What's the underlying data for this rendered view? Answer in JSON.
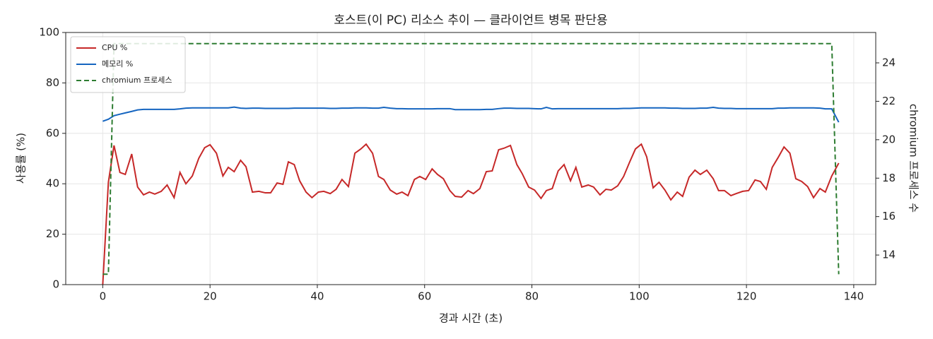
{
  "chart_data": {
    "type": "line",
    "title": "호스트(이 PC) 리소스 추이 — 클라이언트 병목 판단용",
    "xlabel": "경과 시간 (초)",
    "ylabel": "사용률 (%)",
    "y2label": "chromium 프로세스 수",
    "x": [
      0,
      1.05,
      2.1,
      3.2,
      4.2,
      5.4,
      6.5,
      7.6,
      8.7,
      9.7,
      10.9,
      12.0,
      13.3,
      14.4,
      15.5,
      16.7,
      17.9,
      19.0,
      20.0,
      21.2,
      22.4,
      23.4,
      24.5,
      25.7,
      26.7,
      27.9,
      29.1,
      30.3,
      31.3,
      32.5,
      33.6,
      34.6,
      35.7,
      36.7,
      37.9,
      39.0,
      40.2,
      41.2,
      42.4,
      43.5,
      44.6,
      45.8,
      47.0,
      48.1,
      49.1,
      50.3,
      51.4,
      52.4,
      53.6,
      54.8,
      55.8,
      56.9,
      58.1,
      59.1,
      60.2,
      61.4,
      62.4,
      63.5,
      64.7,
      65.7,
      66.9,
      68.1,
      69.1,
      70.3,
      71.5,
      72.6,
      73.8,
      74.8,
      76.0,
      77.2,
      78.2,
      79.4,
      80.5,
      81.7,
      82.7,
      83.8,
      84.9,
      86.0,
      87.2,
      88.2,
      89.3,
      90.5,
      91.5,
      92.7,
      93.8,
      94.8,
      96.0,
      97.1,
      98.2,
      99.3,
      100.4,
      101.4,
      102.6,
      103.7,
      104.8,
      105.9,
      107.1,
      108.1,
      109.3,
      110.4,
      111.4,
      112.6,
      113.8,
      114.8,
      115.9,
      117.1,
      118.1,
      119.3,
      120.4,
      121.6,
      122.6,
      123.7,
      124.8,
      125.9,
      127.0,
      128.1,
      129.2,
      130.3,
      131.4,
      132.5,
      133.7,
      134.7,
      135.9,
      137.2
    ],
    "series": [
      {
        "name": "CPU %",
        "color": "#c62828",
        "style": "solid",
        "values": [
          0,
          40.6,
          55.2,
          44.5,
          43.7,
          51.8,
          38.7,
          35.6,
          36.7,
          35.9,
          37.0,
          39.5,
          34.5,
          44.5,
          40.0,
          43.1,
          50.1,
          54.3,
          55.5,
          52.1,
          43.1,
          46.5,
          44.8,
          49.3,
          46.8,
          36.7,
          37.0,
          36.4,
          36.4,
          40.3,
          39.8,
          48.7,
          47.6,
          41.2,
          36.7,
          34.5,
          36.7,
          37.0,
          36.1,
          37.8,
          41.7,
          38.9,
          52.1,
          53.8,
          55.7,
          52.1,
          42.9,
          41.7,
          37.5,
          35.9,
          36.7,
          35.3,
          41.7,
          42.9,
          41.7,
          45.9,
          43.7,
          42.0,
          37.3,
          35.0,
          34.7,
          37.3,
          36.1,
          38.1,
          44.8,
          45.1,
          53.5,
          54.1,
          55.2,
          47.6,
          44.0,
          38.7,
          37.5,
          34.2,
          37.3,
          38.1,
          45.1,
          47.6,
          41.2,
          46.5,
          38.7,
          39.5,
          38.7,
          35.6,
          37.8,
          37.5,
          39.2,
          42.9,
          48.5,
          53.8,
          55.7,
          50.7,
          38.4,
          40.6,
          37.5,
          33.6,
          36.7,
          35.0,
          42.6,
          45.4,
          43.7,
          45.4,
          42.0,
          37.3,
          37.3,
          35.3,
          36.1,
          37.0,
          37.3,
          41.5,
          40.9,
          37.8,
          46.5,
          50.4,
          54.6,
          52.1,
          42.0,
          40.9,
          38.9,
          34.5,
          38.1,
          36.7,
          43.1,
          48.2
        ]
      },
      {
        "name": "메모리 %",
        "color": "#1565c0",
        "style": "solid",
        "values": [
          64.8,
          65.6,
          67.0,
          67.6,
          68.1,
          68.7,
          69.3,
          69.5,
          69.5,
          69.5,
          69.5,
          69.5,
          69.5,
          69.7,
          70.0,
          70.1,
          70.1,
          70.1,
          70.1,
          70.1,
          70.1,
          70.1,
          70.4,
          70.0,
          69.9,
          70.0,
          70.0,
          69.9,
          69.9,
          69.9,
          69.9,
          69.9,
          70.0,
          70.0,
          70.0,
          70.0,
          70.0,
          70.0,
          69.9,
          69.9,
          70.0,
          70.0,
          70.1,
          70.1,
          70.1,
          70.0,
          70.0,
          70.3,
          70.0,
          69.8,
          69.8,
          69.7,
          69.7,
          69.7,
          69.7,
          69.7,
          69.8,
          69.8,
          69.8,
          69.4,
          69.4,
          69.4,
          69.4,
          69.4,
          69.5,
          69.5,
          69.8,
          70.0,
          70.0,
          69.9,
          69.9,
          69.9,
          69.8,
          69.7,
          70.3,
          69.7,
          69.8,
          69.8,
          69.8,
          69.8,
          69.8,
          69.8,
          69.8,
          69.8,
          69.8,
          69.8,
          69.8,
          69.9,
          69.9,
          70.0,
          70.1,
          70.1,
          70.1,
          70.1,
          70.1,
          70.0,
          70.0,
          69.9,
          69.9,
          69.9,
          70.0,
          70.0,
          70.3,
          70.0,
          69.9,
          69.9,
          69.8,
          69.8,
          69.8,
          69.8,
          69.8,
          69.8,
          69.8,
          70.0,
          70.0,
          70.1,
          70.1,
          70.1,
          70.1,
          70.1,
          70.0,
          69.7,
          69.7,
          64.4
        ]
      },
      {
        "name": "chromium 프로세스",
        "color": "#2e7d32",
        "style": "dashed",
        "axis": "y2",
        "values": [
          13,
          13,
          25,
          25,
          25,
          25,
          25,
          25,
          25,
          25,
          25,
          25,
          25,
          25,
          25,
          25,
          25,
          25,
          25,
          25,
          25,
          25,
          25,
          25,
          25,
          25,
          25,
          25,
          25,
          25,
          25,
          25,
          25,
          25,
          25,
          25,
          25,
          25,
          25,
          25,
          25,
          25,
          25,
          25,
          25,
          25,
          25,
          25,
          25,
          25,
          25,
          25,
          25,
          25,
          25,
          25,
          25,
          25,
          25,
          25,
          25,
          25,
          25,
          25,
          25,
          25,
          25,
          25,
          25,
          25,
          25,
          25,
          25,
          25,
          25,
          25,
          25,
          25,
          25,
          25,
          25,
          25,
          25,
          25,
          25,
          25,
          25,
          25,
          25,
          25,
          25,
          25,
          25,
          25,
          25,
          25,
          25,
          25,
          25,
          25,
          25,
          25,
          25,
          25,
          25,
          25,
          25,
          25,
          25,
          25,
          25,
          25,
          25,
          25,
          25,
          25,
          25,
          25,
          25,
          25,
          25,
          25,
          25,
          13
        ]
      }
    ],
    "xlim": [
      -6.9,
      144.1
    ],
    "xticks": [
      0,
      20,
      40,
      60,
      80,
      100,
      120,
      140
    ],
    "ylim": [
      0,
      100
    ],
    "yticks": [
      0,
      20,
      40,
      60,
      80,
      100
    ],
    "y2lim": [
      12.46,
      25.58
    ],
    "y2ticks": [
      14,
      16,
      18,
      20,
      22,
      24
    ],
    "grid": true,
    "legend": "upper left"
  }
}
